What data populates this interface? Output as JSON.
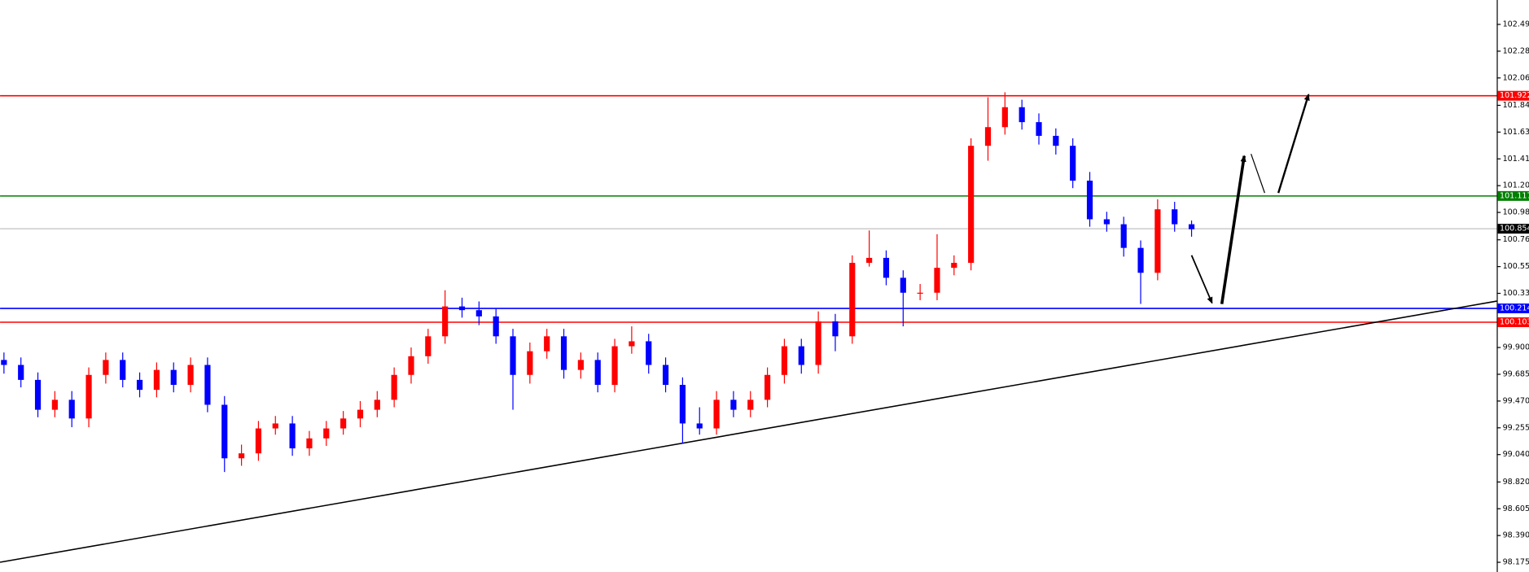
{
  "chart_data": {
    "type": "candlestick",
    "up_color": "#ff0000",
    "down_color": "#0000ff",
    "open": [
      99.8,
      99.76,
      99.64,
      99.4,
      99.48,
      99.33,
      99.68,
      99.8,
      99.64,
      99.56,
      99.72,
      99.6,
      99.76,
      99.44,
      99.01,
      99.05,
      99.25,
      99.29,
      99.09,
      99.17,
      99.25,
      99.33,
      99.4,
      99.48,
      99.68,
      99.83,
      99.99,
      100.23,
      100.2,
      100.15,
      99.99,
      99.68,
      99.87,
      99.99,
      99.72,
      99.8,
      99.6,
      99.91,
      99.95,
      99.76,
      99.6,
      99.29,
      99.25,
      99.48,
      99.4,
      99.48,
      99.68,
      99.91,
      99.76,
      100.11,
      99.99,
      100.58,
      100.62,
      100.46,
      100.34,
      100.34,
      100.54,
      100.58,
      101.52,
      101.67,
      101.83,
      101.71,
      101.6,
      101.52,
      101.24,
      100.93,
      100.89,
      100.7,
      100.5,
      101.01,
      100.89
    ],
    "high": [
      99.86,
      99.82,
      99.7,
      99.55,
      99.55,
      99.74,
      99.86,
      99.86,
      99.7,
      99.78,
      99.78,
      99.82,
      99.82,
      99.51,
      99.12,
      99.31,
      99.35,
      99.35,
      99.23,
      99.31,
      99.39,
      99.47,
      99.55,
      99.74,
      99.9,
      100.05,
      100.36,
      100.3,
      100.27,
      100.21,
      100.05,
      99.94,
      100.05,
      100.05,
      99.86,
      99.86,
      99.97,
      100.07,
      100.01,
      99.82,
      99.66,
      99.42,
      99.55,
      99.55,
      99.55,
      99.74,
      99.97,
      99.97,
      100.19,
      100.17,
      100.64,
      100.84,
      100.68,
      100.52,
      100.41,
      100.81,
      100.64,
      101.58,
      101.91,
      101.95,
      101.89,
      101.78,
      101.66,
      101.58,
      101.31,
      100.99,
      100.95,
      100.76,
      101.09,
      101.07,
      100.92
    ],
    "low": [
      99.69,
      99.58,
      99.34,
      99.34,
      99.26,
      99.26,
      99.61,
      99.58,
      99.5,
      99.5,
      99.54,
      99.54,
      99.38,
      98.9,
      98.95,
      98.99,
      99.2,
      99.03,
      99.03,
      99.11,
      99.2,
      99.26,
      99.34,
      99.42,
      99.61,
      99.77,
      99.93,
      100.14,
      100.08,
      99.93,
      99.4,
      99.61,
      99.81,
      99.65,
      99.65,
      99.54,
      99.54,
      99.85,
      99.69,
      99.54,
      99.13,
      99.2,
      99.2,
      99.34,
      99.34,
      99.42,
      99.61,
      99.69,
      99.69,
      99.87,
      99.93,
      100.55,
      100.4,
      100.07,
      100.28,
      100.28,
      100.48,
      100.52,
      101.4,
      101.61,
      101.65,
      101.53,
      101.45,
      101.18,
      100.87,
      100.83,
      100.63,
      100.25,
      100.44,
      100.83,
      100.79
    ],
    "close": [
      99.76,
      99.64,
      99.4,
      99.48,
      99.33,
      99.68,
      99.8,
      99.64,
      99.56,
      99.72,
      99.6,
      99.76,
      99.44,
      99.01,
      99.05,
      99.25,
      99.29,
      99.09,
      99.17,
      99.25,
      99.33,
      99.4,
      99.48,
      99.68,
      99.83,
      99.99,
      100.23,
      100.2,
      100.15,
      99.99,
      99.68,
      99.87,
      99.99,
      99.72,
      99.8,
      99.6,
      99.91,
      99.95,
      99.76,
      99.6,
      99.29,
      99.25,
      99.48,
      99.4,
      99.48,
      99.68,
      99.91,
      99.76,
      100.11,
      99.99,
      100.58,
      100.62,
      100.46,
      100.34,
      100.34,
      100.54,
      100.58,
      101.52,
      101.67,
      101.83,
      101.71,
      101.6,
      101.52,
      101.24,
      100.93,
      100.89,
      100.7,
      100.5,
      101.01,
      100.89,
      100.85
    ],
    "ylim": [
      98.097,
      102.691
    ],
    "yticks": [
      102.495,
      {
        "value": 102.28,
        "label": "102.280"
      },
      102.065,
      101.845,
      {
        "value": 101.63,
        "label": "101.630"
      },
      101.415,
      {
        "value": 101.2,
        "label": "101.200"
      },
      100.985,
      100.765,
      {
        "value": 100.55,
        "label": "100.550"
      },
      100.335,
      {
        "value": 99.9,
        "label": "99.900"
      },
      99.685,
      {
        "value": 99.47,
        "label": "99.470"
      },
      99.255,
      {
        "value": 99.04,
        "label": "99.040"
      },
      {
        "value": 98.82,
        "label": "98.820"
      },
      98.605,
      {
        "value": 98.39,
        "label": "98.390"
      },
      98.175
    ],
    "levels": [
      {
        "value": 101.922,
        "color": "#ff0000"
      },
      {
        "value": 101.117,
        "color": "#008000"
      },
      {
        "value": 100.854,
        "color": "#c0c0c0",
        "label_color": "#000000"
      },
      {
        "value": 100.214,
        "color": "#0000ff"
      },
      {
        "value": 100.103,
        "color": "#ff0000"
      }
    ]
  }
}
